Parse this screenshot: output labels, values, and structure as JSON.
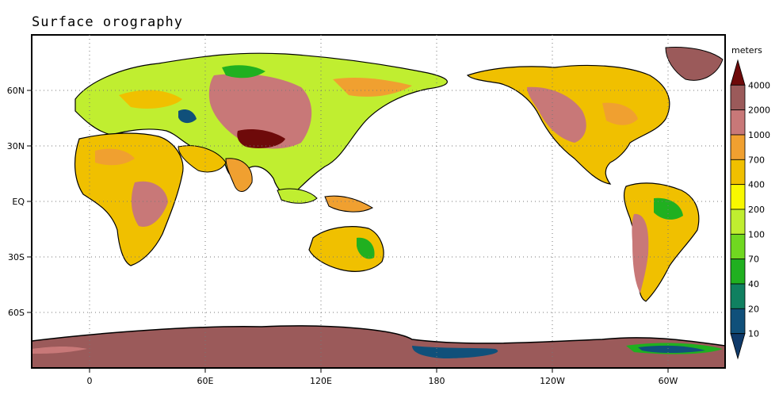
{
  "title": "Surface orography",
  "colorbar": {
    "unit_label": "meters",
    "levels": [
      "4000",
      "2000",
      "1000",
      "700",
      "400",
      "200",
      "100",
      "70",
      "40",
      "20",
      "10"
    ],
    "colors": [
      "#6e0a0a",
      "#9b5a5a",
      "#c87878",
      "#f0a030",
      "#f0c000",
      "#f8f800",
      "#c0ee30",
      "#70d820",
      "#20b020",
      "#108060",
      "#10507a",
      "#0f3a6a"
    ]
  },
  "axes": {
    "y_labels": [
      "60N",
      "30N",
      "EQ",
      "30S",
      "60S"
    ],
    "x_labels": [
      "0",
      "60E",
      "120E",
      "180",
      "120W",
      "60W"
    ]
  }
}
